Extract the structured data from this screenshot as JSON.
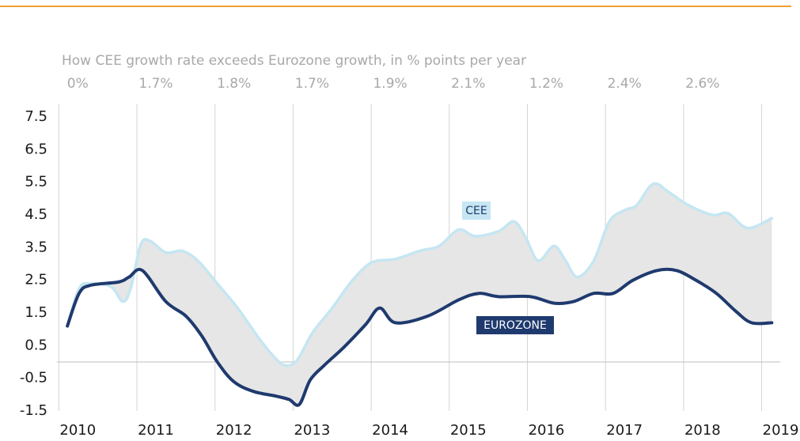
{
  "chart_data": {
    "type": "line",
    "subtitle": "How CEE growth rate exceeds Eurozone growth, in % points per year",
    "excess_growth": {
      "values": [
        0,
        1.7,
        1.8,
        1.7,
        1.9,
        2.1,
        1.2,
        2.4,
        2.6
      ],
      "value_labels": [
        "0%",
        "1.7%",
        "1.8%",
        "1.7%",
        "1.9%",
        "2.1%",
        "1.2%",
        "2.4%",
        "2.6%"
      ]
    },
    "xlim": [
      2010,
      2019.2
    ],
    "xticks": [
      2010,
      2011,
      2012,
      2013,
      2014,
      2015,
      2016,
      2017,
      2018,
      2019
    ],
    "ylim": [
      -1.5,
      7.5
    ],
    "yticks": [
      -1.5,
      -0.5,
      0.5,
      1.5,
      2.5,
      3.5,
      4.5,
      5.5,
      6.5,
      7.5
    ],
    "grid": true,
    "series": [
      {
        "name": "CEE",
        "color": "#c5e6f2",
        "x": [
          2010.11,
          2010.26,
          2010.41,
          2010.67,
          2010.82,
          2010.92,
          2011.05,
          2011.17,
          2011.37,
          2011.58,
          2011.78,
          2012.03,
          2012.29,
          2012.54,
          2012.74,
          2012.89,
          2013.05,
          2013.25,
          2013.5,
          2013.76,
          2014.01,
          2014.31,
          2014.62,
          2014.87,
          2015.12,
          2015.33,
          2015.63,
          2015.83,
          2015.98,
          2016.14,
          2016.34,
          2016.49,
          2016.64,
          2016.85,
          2017.05,
          2017.25,
          2017.4,
          2017.61,
          2017.81,
          2018.06,
          2018.37,
          2018.57,
          2018.82,
          2019.13
        ],
        "values": [
          1.1,
          2.25,
          2.4,
          2.3,
          1.85,
          2.25,
          3.6,
          3.7,
          3.35,
          3.4,
          3.1,
          2.4,
          1.65,
          0.8,
          0.2,
          -0.1,
          0.05,
          0.9,
          1.65,
          2.5,
          3.05,
          3.15,
          3.4,
          3.55,
          4.05,
          3.85,
          4.0,
          4.3,
          3.8,
          3.1,
          3.55,
          3.1,
          2.6,
          3.1,
          4.3,
          4.65,
          4.8,
          5.45,
          5.2,
          4.8,
          4.5,
          4.55,
          4.1,
          4.4
        ]
      },
      {
        "name": "EUROZONE",
        "color": "#1f3a6e",
        "x": [
          2010.11,
          2010.26,
          2010.41,
          2010.77,
          2010.9,
          2011.07,
          2011.37,
          2011.63,
          2011.83,
          2012.03,
          2012.24,
          2012.49,
          2012.79,
          2012.95,
          2013.08,
          2013.22,
          2013.4,
          2013.65,
          2013.93,
          2014.11,
          2014.31,
          2014.72,
          2015.12,
          2015.38,
          2015.63,
          2016.04,
          2016.34,
          2016.59,
          2016.85,
          2017.1,
          2017.35,
          2017.66,
          2017.91,
          2018.16,
          2018.42,
          2018.67,
          2018.87,
          2019.13
        ],
        "values": [
          1.1,
          2.1,
          2.35,
          2.45,
          2.6,
          2.8,
          1.85,
          1.4,
          0.8,
          0.0,
          -0.6,
          -0.9,
          -1.05,
          -1.15,
          -1.3,
          -0.55,
          -0.1,
          0.45,
          1.15,
          1.65,
          1.2,
          1.4,
          1.9,
          2.1,
          2.0,
          2.0,
          1.8,
          1.85,
          2.1,
          2.1,
          2.5,
          2.8,
          2.8,
          2.5,
          2.1,
          1.55,
          1.2,
          1.2
        ]
      }
    ]
  }
}
